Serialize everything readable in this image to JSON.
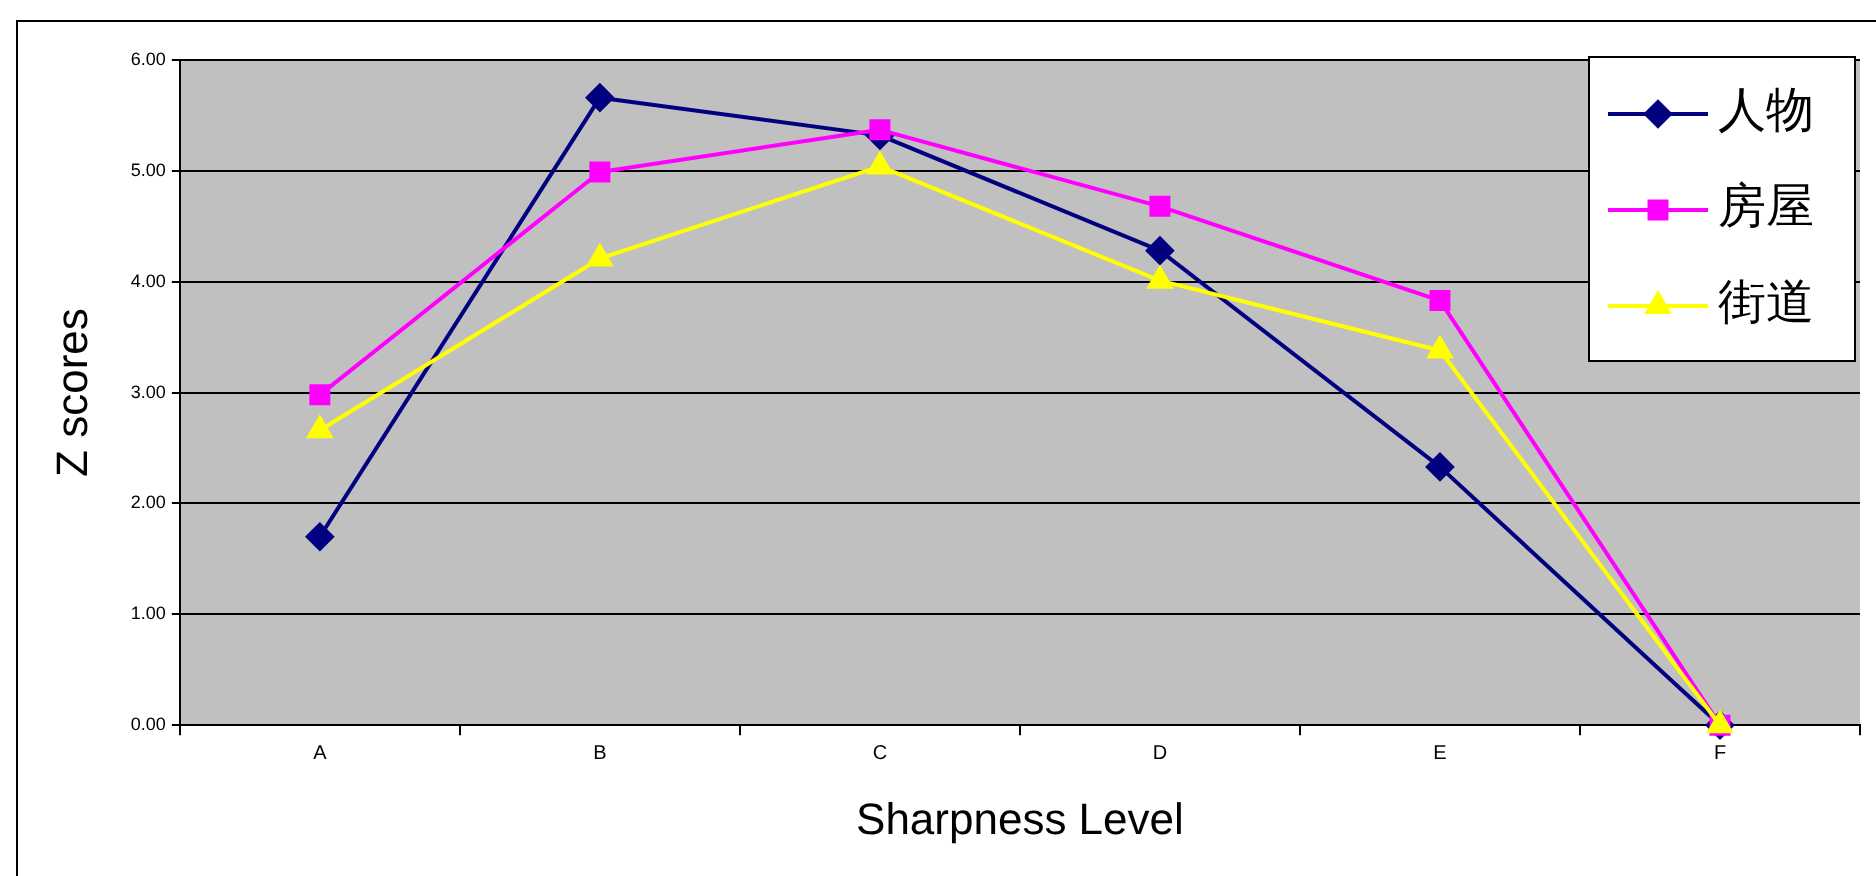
{
  "chart_data": {
    "type": "line",
    "xlabel": "Sharpness Level",
    "ylabel": "Z scores",
    "categories": [
      "A",
      "B",
      "C",
      "D",
      "E",
      "F"
    ],
    "series": [
      {
        "name": "人物",
        "color": "#000080",
        "marker": "diamond",
        "values": [
          1.7,
          5.66,
          5.32,
          4.28,
          2.33,
          0
        ]
      },
      {
        "name": "房屋",
        "color": "#ff00ff",
        "marker": "square",
        "values": [
          2.98,
          4.99,
          5.37,
          4.68,
          3.83,
          0
        ]
      },
      {
        "name": "街道",
        "color": "#ffff00",
        "marker": "triangle",
        "values": [
          2.66,
          4.21,
          5.04,
          4.01,
          3.38,
          0
        ]
      }
    ],
    "ylim": [
      0,
      6
    ],
    "yticks": [
      {
        "value": 0,
        "label": "0.00"
      },
      {
        "value": 1,
        "label": "1.00"
      },
      {
        "value": 2,
        "label": "2.00"
      },
      {
        "value": 3,
        "label": "3.00"
      },
      {
        "value": 4,
        "label": "4.00"
      },
      {
        "value": 5,
        "label": "5.00"
      },
      {
        "value": 6,
        "label": "6.00"
      }
    ],
    "grid": "y",
    "legend": "top right",
    "line_style": "solid"
  }
}
